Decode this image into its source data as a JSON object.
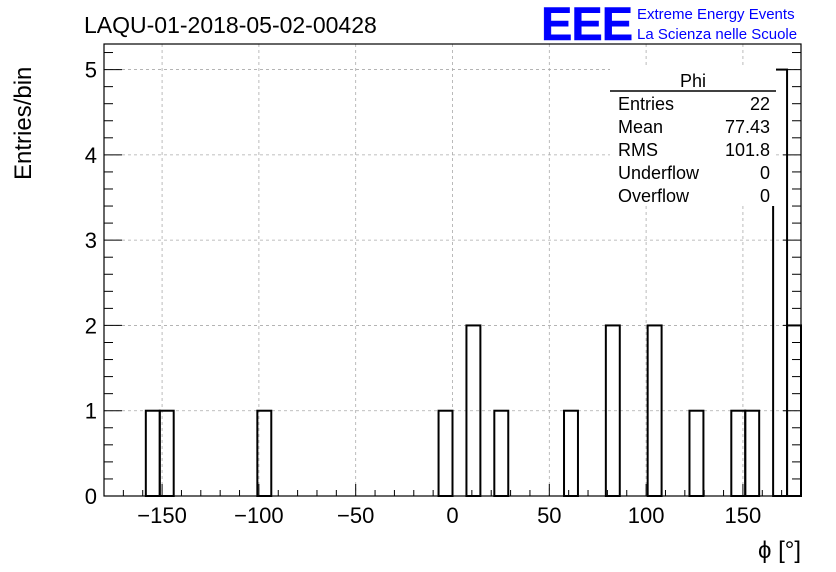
{
  "header": {
    "run_title": "LAQU-01-2018-05-02-00428",
    "logo_text": "EEE",
    "logo_line1": "Extreme Energy Events",
    "logo_line2": "La Scienza nelle Scuole"
  },
  "stats": {
    "title": "Phi",
    "rows": [
      {
        "label": "Entries",
        "value": "22"
      },
      {
        "label": "Mean",
        "value": "77.43"
      },
      {
        "label": "RMS",
        "value": "101.8"
      },
      {
        "label": "Underflow",
        "value": "0"
      },
      {
        "label": "Overflow",
        "value": "0"
      }
    ]
  },
  "colors": {
    "logo": "#0000ff",
    "bars": "#000000",
    "grid": "#aaaaaa"
  },
  "chart_data": {
    "type": "bar",
    "title": "LAQU-01-2018-05-02-00428",
    "xlabel": "ϕ [°]",
    "ylabel": "Entries/bin",
    "xlim": [
      -180,
      180
    ],
    "ylim": [
      0,
      5.3
    ],
    "grid": true,
    "bin_width": 7.2,
    "x_ticks": [
      "−150",
      "−100",
      "−50",
      "0",
      "50",
      "100",
      "150"
    ],
    "x_tick_values": [
      -150,
      -100,
      -50,
      0,
      50,
      100,
      150
    ],
    "y_ticks": [
      "0",
      "1",
      "2",
      "3",
      "4",
      "5"
    ],
    "y_tick_values": [
      0,
      1,
      2,
      3,
      4,
      5
    ],
    "bins": [
      {
        "x0": -158.4,
        "x1": -151.2,
        "value": 1
      },
      {
        "x0": -151.2,
        "x1": -144.0,
        "value": 1
      },
      {
        "x0": -100.8,
        "x1": -93.6,
        "value": 1
      },
      {
        "x0": -7.2,
        "x1": 0.0,
        "value": 1
      },
      {
        "x0": 7.2,
        "x1": 14.4,
        "value": 2
      },
      {
        "x0": 21.6,
        "x1": 28.8,
        "value": 1
      },
      {
        "x0": 57.6,
        "x1": 64.8,
        "value": 1
      },
      {
        "x0": 79.2,
        "x1": 86.4,
        "value": 2
      },
      {
        "x0": 100.8,
        "x1": 108.0,
        "value": 2
      },
      {
        "x0": 122.4,
        "x1": 129.6,
        "value": 1
      },
      {
        "x0": 144.0,
        "x1": 151.2,
        "value": 1
      },
      {
        "x0": 151.2,
        "x1": 158.4,
        "value": 1
      },
      {
        "x0": 165.6,
        "x1": 172.8,
        "value": 5
      },
      {
        "x0": 172.8,
        "x1": 180.0,
        "value": 2
      }
    ]
  }
}
